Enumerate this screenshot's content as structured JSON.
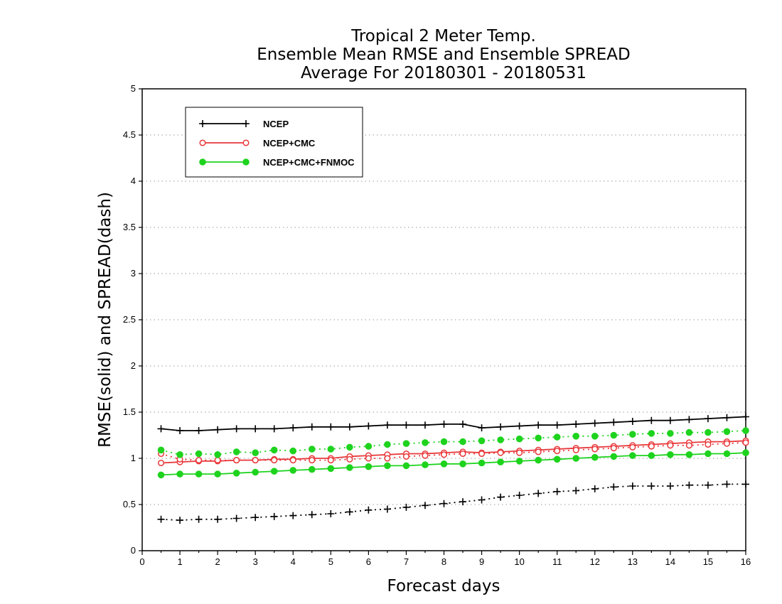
{
  "chart_data": {
    "type": "line",
    "title": [
      "Tropical 2 Meter Temp.",
      "Ensemble Mean RMSE and Ensemble SPREAD",
      "Average For 20180301 - 20180531"
    ],
    "xlabel": "Forecast days",
    "ylabel": "RMSE(solid) and SPREAD(dash)",
    "xlim": [
      0,
      16
    ],
    "ylim": [
      0,
      5
    ],
    "xticks": [
      "0",
      "1",
      "2",
      "3",
      "4",
      "5",
      "6",
      "7",
      "8",
      "9",
      "10",
      "11",
      "12",
      "13",
      "14",
      "15",
      "16"
    ],
    "yticks": [
      "0",
      "0.5",
      "1",
      "1.5",
      "2",
      "2.5",
      "3",
      "3.5",
      "4",
      "4.5",
      "5"
    ],
    "grid": true,
    "legend_position": "top-left",
    "x": [
      0.5,
      1,
      1.5,
      2,
      2.5,
      3,
      3.5,
      4,
      4.5,
      5,
      5.5,
      6,
      6.5,
      7,
      7.5,
      8,
      8.5,
      9,
      9.5,
      10,
      10.5,
      11,
      11.5,
      12,
      12.5,
      13,
      13.5,
      14,
      14.5,
      15,
      15.5,
      16
    ],
    "series": [
      {
        "name": "NCEP",
        "color": "#000000",
        "marker": "plus",
        "rmse": [
          1.32,
          1.3,
          1.3,
          1.31,
          1.32,
          1.32,
          1.32,
          1.33,
          1.34,
          1.34,
          1.34,
          1.35,
          1.36,
          1.36,
          1.36,
          1.37,
          1.37,
          1.33,
          1.34,
          1.35,
          1.36,
          1.36,
          1.37,
          1.38,
          1.39,
          1.4,
          1.41,
          1.41,
          1.42,
          1.43,
          1.44,
          1.45
        ],
        "spread": [
          0.34,
          0.33,
          0.34,
          0.34,
          0.35,
          0.36,
          0.37,
          0.38,
          0.39,
          0.4,
          0.42,
          0.44,
          0.45,
          0.47,
          0.49,
          0.51,
          0.53,
          0.55,
          0.58,
          0.6,
          0.62,
          0.64,
          0.65,
          0.67,
          0.69,
          0.7,
          0.7,
          0.7,
          0.71,
          0.71,
          0.72,
          0.72
        ]
      },
      {
        "name": "NCEP+CMC",
        "color": "#e8383b",
        "marker": "open-circle",
        "rmse": [
          0.95,
          0.96,
          0.97,
          0.97,
          0.98,
          0.98,
          0.99,
          0.99,
          1.0,
          1.0,
          1.02,
          1.03,
          1.04,
          1.05,
          1.05,
          1.06,
          1.07,
          1.06,
          1.07,
          1.08,
          1.09,
          1.1,
          1.11,
          1.12,
          1.13,
          1.14,
          1.15,
          1.16,
          1.17,
          1.18,
          1.18,
          1.19
        ],
        "spread": [
          1.05,
          0.99,
          0.98,
          0.98,
          0.98,
          0.98,
          0.98,
          0.98,
          0.98,
          0.98,
          0.99,
          1.0,
          1.0,
          1.02,
          1.03,
          1.04,
          1.05,
          1.05,
          1.06,
          1.06,
          1.07,
          1.08,
          1.09,
          1.1,
          1.11,
          1.12,
          1.13,
          1.14,
          1.14,
          1.15,
          1.16,
          1.17
        ]
      },
      {
        "name": "NCEP+CMC+FNMOC",
        "color": "#1ed31e",
        "marker": "filled-circle",
        "rmse": [
          0.82,
          0.83,
          0.83,
          0.83,
          0.84,
          0.85,
          0.86,
          0.87,
          0.88,
          0.89,
          0.9,
          0.91,
          0.92,
          0.92,
          0.93,
          0.94,
          0.94,
          0.95,
          0.96,
          0.97,
          0.98,
          0.99,
          1.0,
          1.01,
          1.02,
          1.03,
          1.03,
          1.04,
          1.04,
          1.05,
          1.05,
          1.06
        ],
        "spread": [
          1.09,
          1.04,
          1.05,
          1.04,
          1.07,
          1.06,
          1.09,
          1.08,
          1.1,
          1.1,
          1.12,
          1.13,
          1.15,
          1.16,
          1.17,
          1.18,
          1.18,
          1.19,
          1.2,
          1.21,
          1.22,
          1.23,
          1.24,
          1.24,
          1.25,
          1.26,
          1.27,
          1.27,
          1.28,
          1.28,
          1.29,
          1.3
        ]
      }
    ]
  }
}
